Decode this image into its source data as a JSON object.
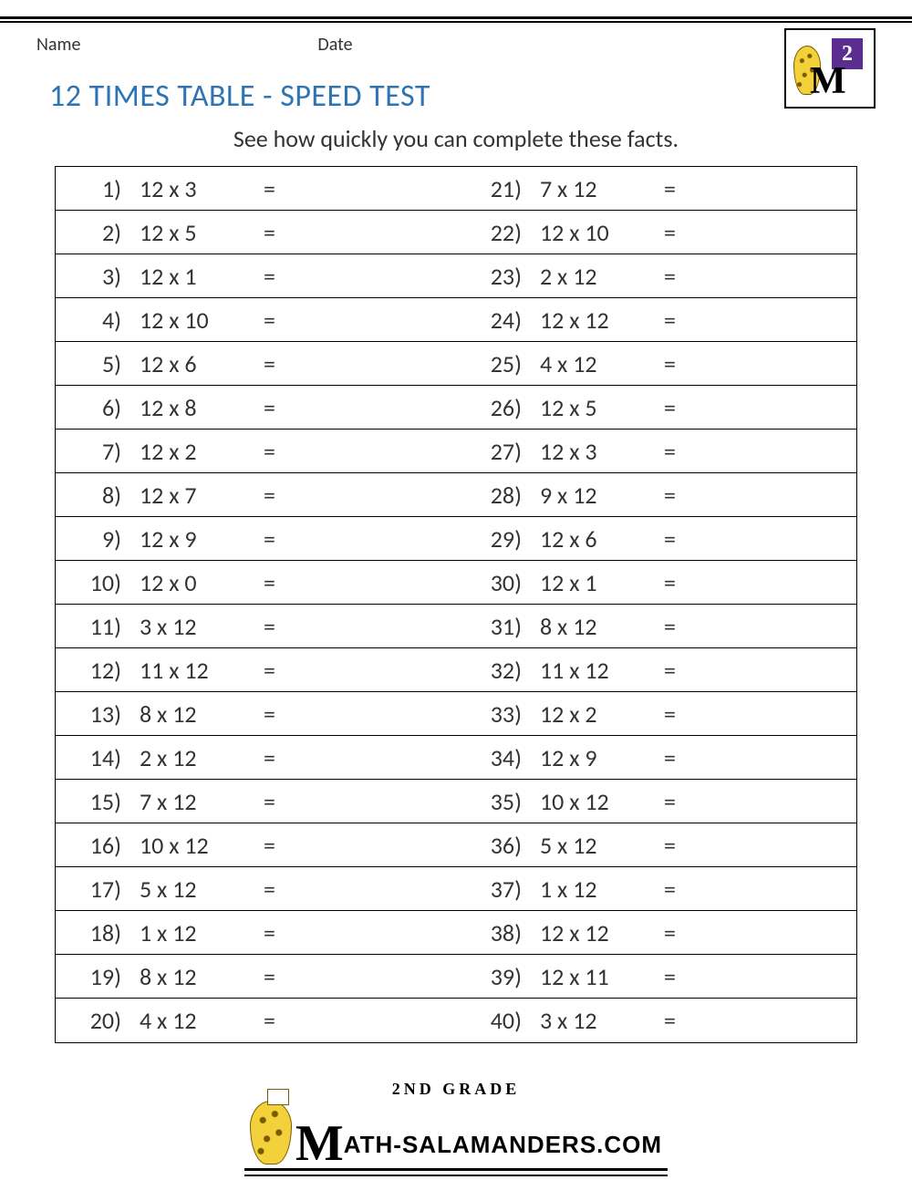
{
  "meta": {
    "name_label": "Name",
    "date_label": "Date"
  },
  "logo": {
    "grade_number": "2"
  },
  "title": "12 TIMES TABLE - SPEED TEST",
  "subtitle": "See how quickly you can complete these facts.",
  "colors": {
    "title_color": "#2e74b5",
    "text_color": "#333333",
    "border_color": "#000000",
    "background": "#ffffff",
    "logo_purple": "#5b2d90",
    "logo_yellow": "#f2d13a"
  },
  "typography": {
    "title_fontsize": 34,
    "subtitle_fontsize": 26,
    "body_fontsize": 26,
    "meta_fontsize": 20
  },
  "problems_left": [
    {
      "n": "1)",
      "expr": "12 x 3",
      "eq": "="
    },
    {
      "n": "2)",
      "expr": "12 x 5",
      "eq": "="
    },
    {
      "n": "3)",
      "expr": "12 x 1",
      "eq": "="
    },
    {
      "n": "4)",
      "expr": "12 x 10",
      "eq": "="
    },
    {
      "n": "5)",
      "expr": "12 x 6",
      "eq": "="
    },
    {
      "n": "6)",
      "expr": "12 x 8",
      "eq": "="
    },
    {
      "n": "7)",
      "expr": "12 x 2",
      "eq": "="
    },
    {
      "n": "8)",
      "expr": "12 x 7",
      "eq": "="
    },
    {
      "n": "9)",
      "expr": "12 x 9",
      "eq": "="
    },
    {
      "n": "10)",
      "expr": "12 x 0",
      "eq": "="
    },
    {
      "n": "11)",
      "expr": "3 x 12",
      "eq": "="
    },
    {
      "n": "12)",
      "expr": "11 x 12",
      "eq": "="
    },
    {
      "n": "13)",
      "expr": "8 x 12",
      "eq": "="
    },
    {
      "n": "14)",
      "expr": "2 x 12",
      "eq": "="
    },
    {
      "n": "15)",
      "expr": "7 x 12",
      "eq": "="
    },
    {
      "n": "16)",
      "expr": "10 x 12",
      "eq": "="
    },
    {
      "n": "17)",
      "expr": "5 x 12",
      "eq": "="
    },
    {
      "n": "18)",
      "expr": "1 x 12",
      "eq": "="
    },
    {
      "n": "19)",
      "expr": "8 x 12",
      "eq": "="
    },
    {
      "n": "20)",
      "expr": "4 x 12",
      "eq": "="
    }
  ],
  "problems_right": [
    {
      "n": "21)",
      "expr": "7 x 12",
      "eq": "="
    },
    {
      "n": "22)",
      "expr": "12 x 10",
      "eq": "="
    },
    {
      "n": "23)",
      "expr": "2 x 12",
      "eq": "="
    },
    {
      "n": "24)",
      "expr": "12 x 12",
      "eq": "="
    },
    {
      "n": "25)",
      "expr": "4 x 12",
      "eq": "="
    },
    {
      "n": "26)",
      "expr": "12 x 5",
      "eq": "="
    },
    {
      "n": "27)",
      "expr": "12 x 3",
      "eq": "="
    },
    {
      "n": "28)",
      "expr": "9 x 12",
      "eq": "="
    },
    {
      "n": "29)",
      "expr": "12 x 6",
      "eq": "="
    },
    {
      "n": "30)",
      "expr": "12 x 1",
      "eq": "="
    },
    {
      "n": "31)",
      "expr": "8 x 12",
      "eq": "="
    },
    {
      "n": "32)",
      "expr": "11 x 12",
      "eq": "="
    },
    {
      "n": "33)",
      "expr": "12 x 2",
      "eq": "="
    },
    {
      "n": "34)",
      "expr": "12 x 9",
      "eq": "="
    },
    {
      "n": "35)",
      "expr": "10 x 12",
      "eq": "="
    },
    {
      "n": "36)",
      "expr": "5 x 12",
      "eq": "="
    },
    {
      "n": "37)",
      "expr": "1 x 12",
      "eq": "="
    },
    {
      "n": "38)",
      "expr": "12 x 12",
      "eq": "="
    },
    {
      "n": "39)",
      "expr": "12 x 11",
      "eq": "="
    },
    {
      "n": "40)",
      "expr": "3 x 12",
      "eq": "="
    }
  ],
  "footer": {
    "grade_text": "2ND GRADE",
    "brand_rest": "ATH-SALAMANDERS.COM"
  }
}
